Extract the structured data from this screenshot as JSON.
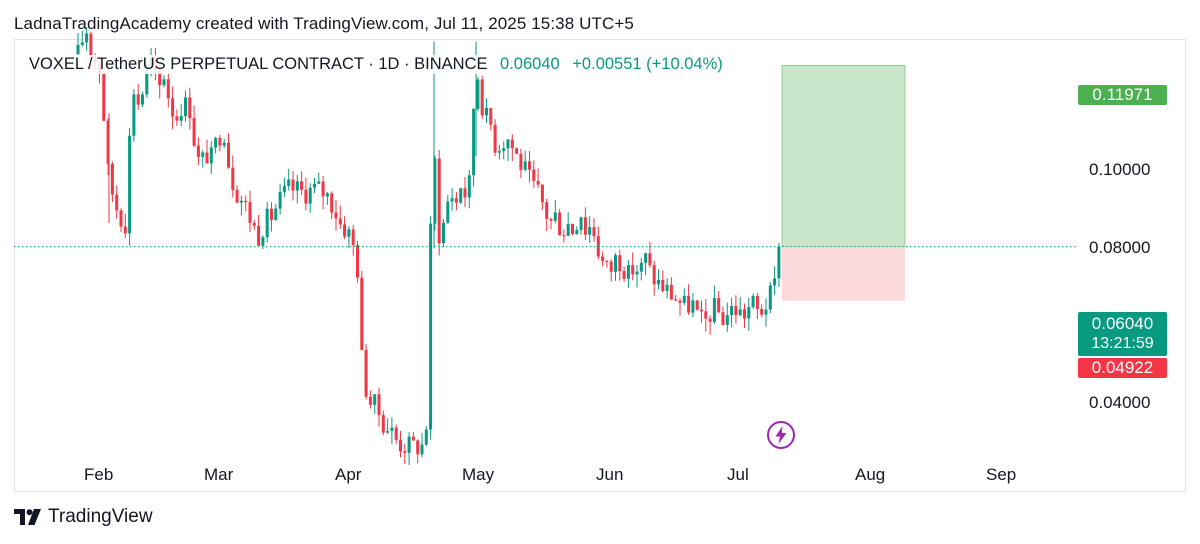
{
  "attribution": "LadnaTradingAcademy created with TradingView.com, Jul 11, 2025 15:38 UTC+5",
  "legend": {
    "symbol": "VOXEL / TetherUS PERPETUAL CONTRACT · 1D · BINANCE",
    "price": "0.06040",
    "change": "+0.00551 (+10.04%)"
  },
  "brand": "TradingView",
  "icons": {
    "logo": "tradingview-logo-icon",
    "flash": "lightning-icon"
  },
  "colors": {
    "up": "#089981",
    "down": "#F23645",
    "profit_zone": "#C8E6C9",
    "loss_zone": "#FCDADC",
    "target_tag": "#4CAF50",
    "price_tag": "#089981",
    "stop_tag": "#F23645",
    "flash": "#9C27B0"
  },
  "chart_data": {
    "type": "candlestick",
    "title": "VOXEL / TetherUS PERPETUAL CONTRACT · 1D · BINANCE",
    "x_ticks": [
      "Feb",
      "Mar",
      "Apr",
      "May",
      "Jun",
      "Jul",
      "Aug",
      "Sep"
    ],
    "y_ticks": [
      "0.04000",
      "0.08000",
      "0.10000"
    ],
    "ylim": [
      0.0275,
      0.1318
    ],
    "scale": "log",
    "last_price": 0.0604,
    "countdown": "13:21:59",
    "position": {
      "type": "long",
      "entry": 0.0604,
      "target": 0.11971,
      "target_label": "0.11971",
      "stop": 0.04922,
      "stop_label": "0.04922",
      "entry_label": "0.06040"
    },
    "candles_approx": [
      {
        "period": "late Jan",
        "open": 0.13,
        "close": 0.12
      },
      {
        "period": "early Feb",
        "open": 0.12,
        "close": 0.088
      },
      {
        "period": "mid Feb",
        "open": 0.088,
        "close": 0.122
      },
      {
        "period": "late Feb",
        "open": 0.12,
        "close": 0.108
      },
      {
        "period": "early Mar",
        "open": 0.106,
        "close": 0.088
      },
      {
        "period": "mid Mar",
        "open": 0.088,
        "close": 0.074
      },
      {
        "period": "late Mar",
        "open": 0.078,
        "close": 0.074
      },
      {
        "period": "early Apr",
        "open": 0.07,
        "close": 0.031
      },
      {
        "period": "mid Apr",
        "open": 0.031,
        "close": 0.0285
      },
      {
        "period": "Apr 21",
        "open": 0.029,
        "close": 0.057
      },
      {
        "period": "late Apr",
        "open": 0.058,
        "close": 0.091
      },
      {
        "period": "May 1",
        "open": 0.085,
        "close": 0.12
      },
      {
        "period": "early May",
        "open": 0.118,
        "close": 0.093
      },
      {
        "period": "mid May",
        "open": 0.092,
        "close": 0.082
      },
      {
        "period": "late May",
        "open": 0.082,
        "close": 0.071
      },
      {
        "period": "early Jun",
        "open": 0.07,
        "close": 0.056
      },
      {
        "period": "mid Jun",
        "open": 0.056,
        "close": 0.056
      },
      {
        "period": "late Jun",
        "open": 0.054,
        "close": 0.046
      },
      {
        "period": "early Jul",
        "open": 0.046,
        "close": 0.0468
      },
      {
        "period": "Jul 11",
        "open": 0.0549,
        "close": 0.0604
      }
    ]
  }
}
